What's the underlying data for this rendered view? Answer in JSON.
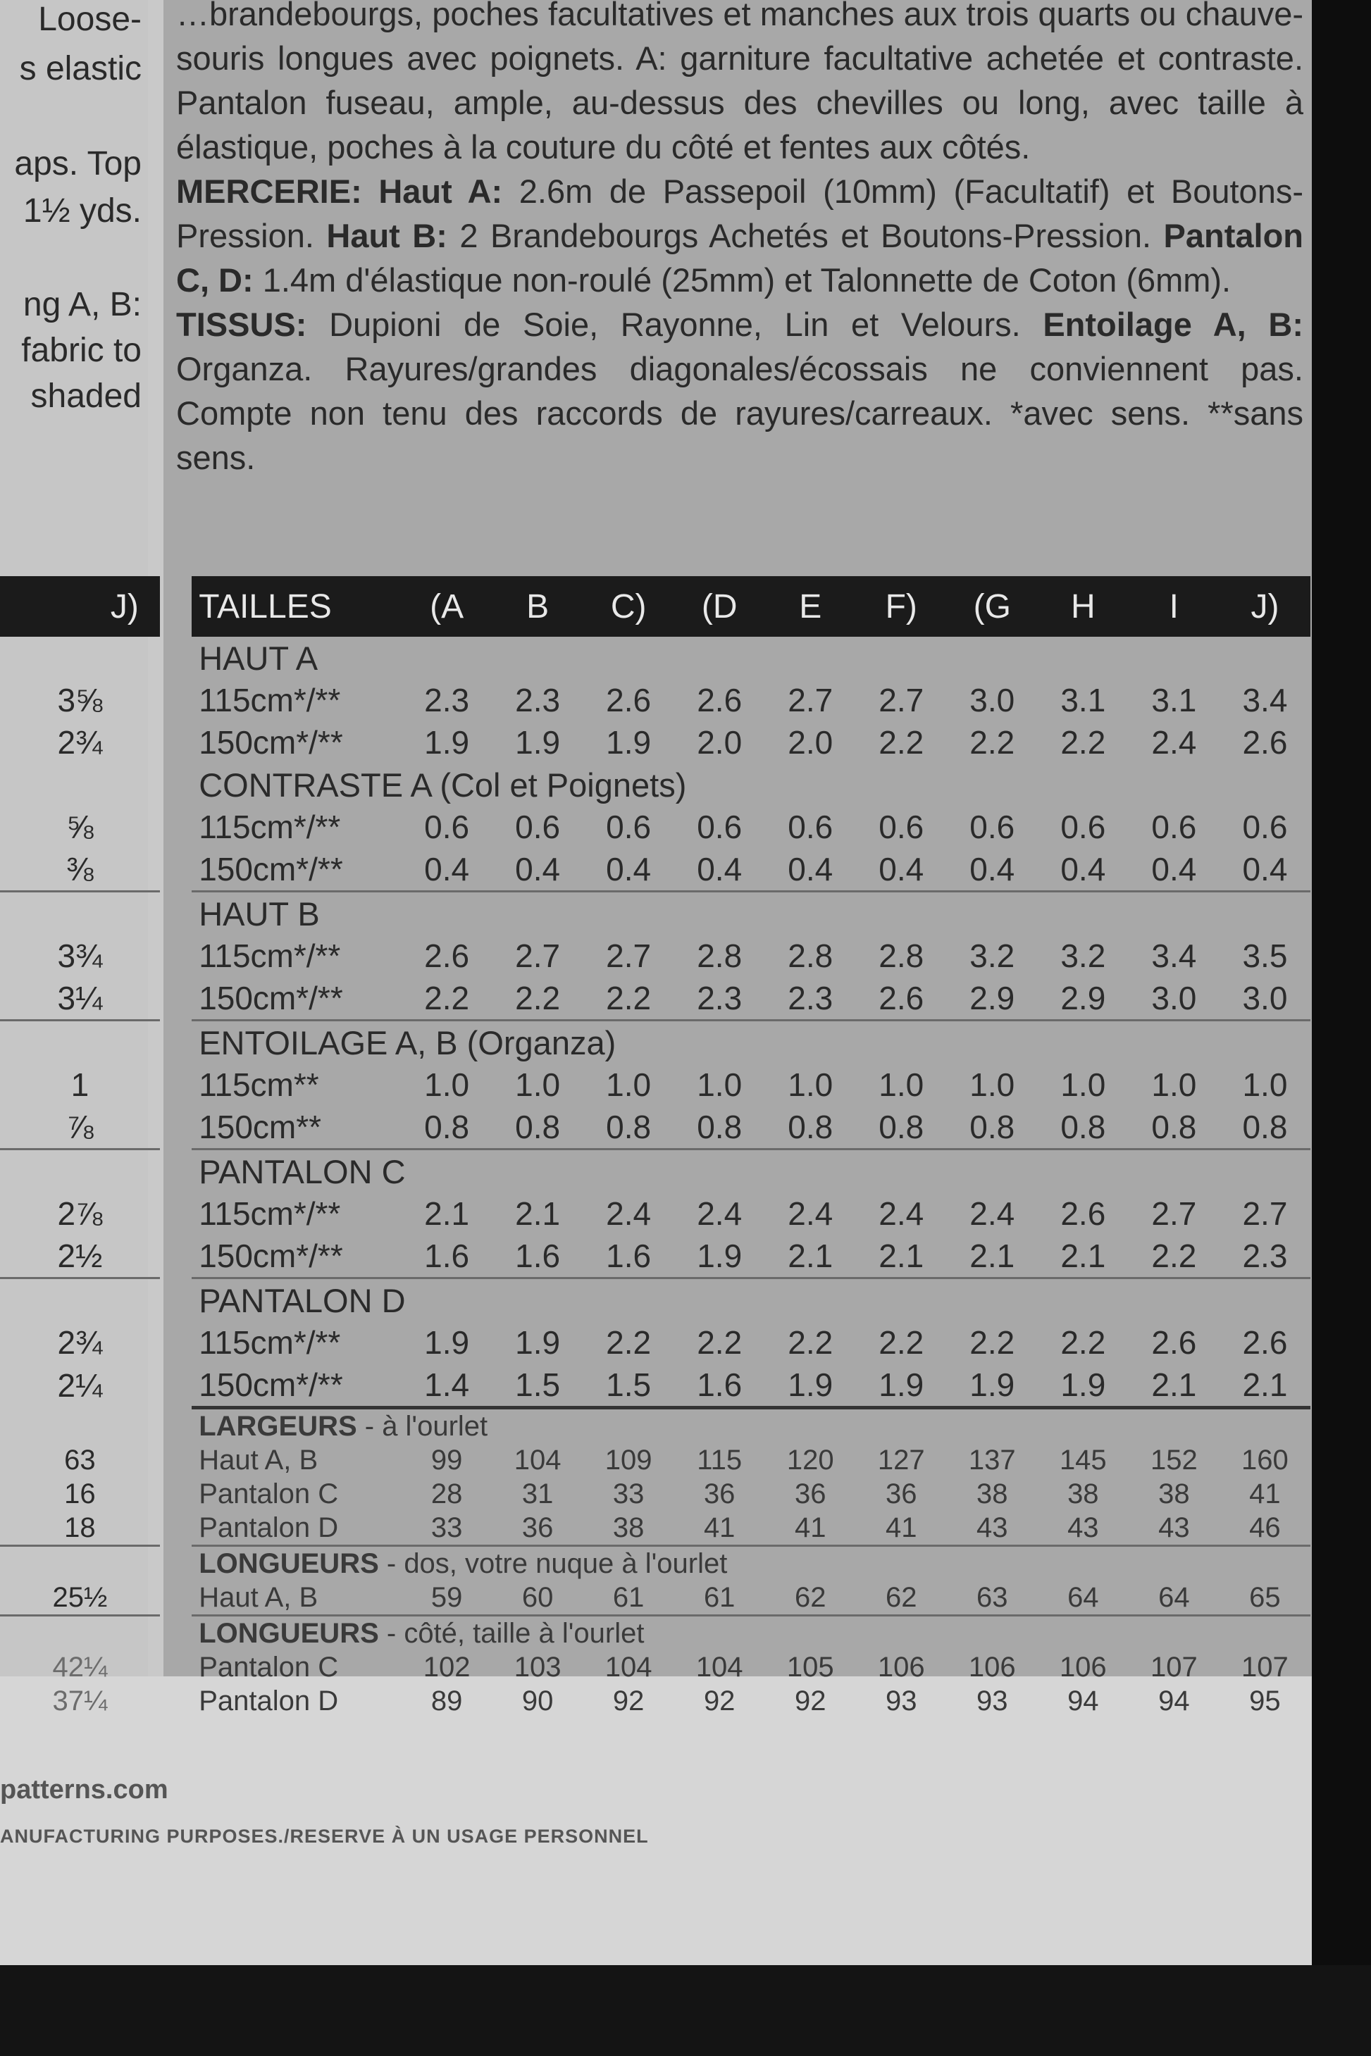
{
  "margin_column": [
    "Loose-",
    "s elastic",
    "aps. Top",
    "1½ yds.",
    "ng A, B:",
    "fabric to",
    "shaded"
  ],
  "description": [
    [
      {
        "t": "…brandebourgs, poches facultatives et manches aux trois quarts ou chauve-souris longues avec poignets. A: garniture facultative achetée et contraste. Pantalon fuseau, ample, au-dessus des chevilles ou long, avec taille à élastique, poches à la couture du côté et fentes aux côtés.",
        "b": false
      }
    ],
    [
      {
        "t": "MERCERIE: Haut A:",
        "b": true
      },
      {
        "t": " 2.6m de Passepoil (10mm) (Facultatif) et Boutons-Pression. ",
        "b": false
      },
      {
        "t": "Haut B:",
        "b": true
      },
      {
        "t": " 2 Brandebourgs Achetés et Boutons-Pression. ",
        "b": false
      },
      {
        "t": "Pantalon C, D:",
        "b": true
      },
      {
        "t": " 1.4m d'élastique non-roulé (25mm) et Talonnette de Coton (6mm).",
        "b": false
      }
    ],
    [
      {
        "t": "TISSUS:",
        "b": true
      },
      {
        "t": " Dupioni de Soie, Rayonne, Lin et Velours. ",
        "b": false
      },
      {
        "t": "Entoilage A, B:",
        "b": true
      },
      {
        "t": " Organza. Rayures/grandes diagonales/écossais ne conviennent pas. Compte non tenu des raccords de rayures/carreaux. *avec sens. **sans sens.",
        "b": false
      }
    ]
  ],
  "table": {
    "header_left": "J)",
    "header_label": "TAILLES",
    "sizes": [
      "(A",
      "B",
      "C)",
      "(D",
      "E",
      "F)",
      "(G",
      "H",
      "I",
      "J)"
    ],
    "sections": [
      {
        "title": "HAUT A",
        "rows": [
          {
            "left": "3⅝",
            "label": "115cm*/**",
            "values": [
              "2.3",
              "2.3",
              "2.6",
              "2.6",
              "2.7",
              "2.7",
              "3.0",
              "3.1",
              "3.1",
              "3.4"
            ]
          },
          {
            "left": "2¾",
            "label": "150cm*/**",
            "values": [
              "1.9",
              "1.9",
              "1.9",
              "2.0",
              "2.0",
              "2.2",
              "2.2",
              "2.2",
              "2.4",
              "2.6"
            ]
          }
        ]
      },
      {
        "title": "CONTRASTE A (Col et Poignets)",
        "rows": [
          {
            "left": "⅝",
            "label": "115cm*/**",
            "values": [
              "0.6",
              "0.6",
              "0.6",
              "0.6",
              "0.6",
              "0.6",
              "0.6",
              "0.6",
              "0.6",
              "0.6"
            ]
          },
          {
            "left": "⅜",
            "label": "150cm*/**",
            "values": [
              "0.4",
              "0.4",
              "0.4",
              "0.4",
              "0.4",
              "0.4",
              "0.4",
              "0.4",
              "0.4",
              "0.4"
            ]
          }
        ]
      },
      {
        "title": "HAUT B",
        "rows": [
          {
            "left": "3¾",
            "label": "115cm*/**",
            "values": [
              "2.6",
              "2.7",
              "2.7",
              "2.8",
              "2.8",
              "2.8",
              "3.2",
              "3.2",
              "3.4",
              "3.5"
            ]
          },
          {
            "left": "3¼",
            "label": "150cm*/**",
            "values": [
              "2.2",
              "2.2",
              "2.2",
              "2.3",
              "2.3",
              "2.6",
              "2.9",
              "2.9",
              "3.0",
              "3.0"
            ]
          }
        ]
      },
      {
        "title": "ENTOILAGE A, B (Organza)",
        "rows": [
          {
            "left": "1",
            "label": "115cm**",
            "values": [
              "1.0",
              "1.0",
              "1.0",
              "1.0",
              "1.0",
              "1.0",
              "1.0",
              "1.0",
              "1.0",
              "1.0"
            ]
          },
          {
            "left": "⅞",
            "label": "150cm**",
            "values": [
              "0.8",
              "0.8",
              "0.8",
              "0.8",
              "0.8",
              "0.8",
              "0.8",
              "0.8",
              "0.8",
              "0.8"
            ]
          }
        ]
      },
      {
        "title": "PANTALON C",
        "rows": [
          {
            "left": "2⅞",
            "label": "115cm*/**",
            "values": [
              "2.1",
              "2.1",
              "2.4",
              "2.4",
              "2.4",
              "2.4",
              "2.4",
              "2.6",
              "2.7",
              "2.7"
            ]
          },
          {
            "left": "2½",
            "label": "150cm*/**",
            "values": [
              "1.6",
              "1.6",
              "1.6",
              "1.9",
              "2.1",
              "2.1",
              "2.1",
              "2.1",
              "2.2",
              "2.3"
            ]
          }
        ]
      },
      {
        "title": "PANTALON D",
        "rows": [
          {
            "left": "2¾",
            "label": "115cm*/**",
            "values": [
              "1.9",
              "1.9",
              "2.2",
              "2.2",
              "2.2",
              "2.2",
              "2.2",
              "2.2",
              "2.6",
              "2.6"
            ]
          },
          {
            "left": "2¼",
            "label": "150cm*/**",
            "values": [
              "1.4",
              "1.5",
              "1.5",
              "1.6",
              "1.9",
              "1.9",
              "1.9",
              "1.9",
              "2.1",
              "2.1"
            ]
          }
        ]
      },
      {
        "title": "LARGEURS",
        "subtitle": " - à l'ourlet",
        "small": true,
        "rows": [
          {
            "left": "63",
            "label": "Haut A, B",
            "values": [
              "99",
              "104",
              "109",
              "115",
              "120",
              "127",
              "137",
              "145",
              "152",
              "160"
            ]
          },
          {
            "left": "16",
            "label": "Pantalon C",
            "values": [
              "28",
              "31",
              "33",
              "36",
              "36",
              "36",
              "38",
              "38",
              "38",
              "41"
            ]
          },
          {
            "left": "18",
            "label": "Pantalon D",
            "values": [
              "33",
              "36",
              "38",
              "41",
              "41",
              "41",
              "43",
              "43",
              "43",
              "46"
            ]
          }
        ]
      },
      {
        "title": "LONGUEURS",
        "subtitle": " - dos, votre nuque à l'ourlet",
        "small": true,
        "rows": [
          {
            "left": "25½",
            "label": "Haut A, B",
            "values": [
              "59",
              "60",
              "61",
              "61",
              "62",
              "62",
              "63",
              "64",
              "64",
              "65"
            ]
          }
        ]
      },
      {
        "title": "LONGUEURS",
        "subtitle": " - côté, taille à l'ourlet",
        "small": true,
        "faded": true,
        "rows": [
          {
            "left": "42¼",
            "label": "Pantalon C",
            "values": [
              "102",
              "103",
              "104",
              "104",
              "105",
              "106",
              "106",
              "106",
              "107",
              "107"
            ]
          },
          {
            "left": "37¼",
            "label": "Pantalon D",
            "values": [
              "89",
              "90",
              "92",
              "92",
              "92",
              "93",
              "93",
              "94",
              "94",
              "95"
            ]
          }
        ]
      }
    ]
  },
  "footer": {
    "website": "patterns.com",
    "notice": "ANUFACTURING PURPOSES./RESERVE À UN USAGE PERSONNEL"
  }
}
